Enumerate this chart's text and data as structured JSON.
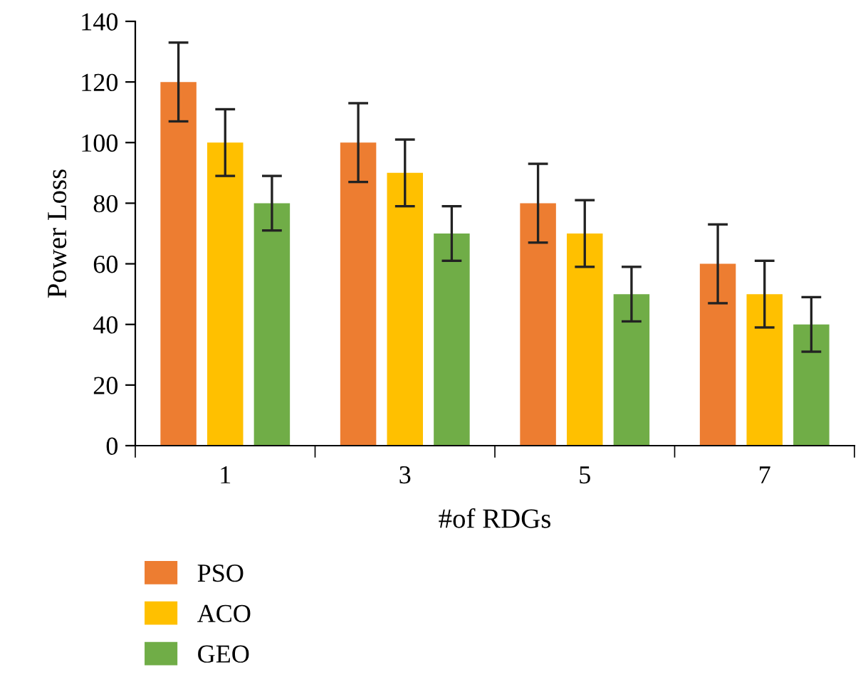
{
  "chart_data": {
    "type": "bar",
    "xlabel": "#of RDGs",
    "ylabel": "Power Loss",
    "categories": [
      "1",
      "3",
      "5",
      "7"
    ],
    "series": [
      {
        "name": "PSO",
        "color": "#ed7d31",
        "values": [
          120,
          100,
          80,
          60
        ],
        "errors": [
          13,
          13,
          13,
          13
        ]
      },
      {
        "name": "ACO",
        "color": "#ffc000",
        "values": [
          100,
          90,
          70,
          50
        ],
        "errors": [
          11,
          11,
          11,
          11
        ]
      },
      {
        "name": "GEO",
        "color": "#70ad47",
        "values": [
          80,
          70,
          50,
          40
        ],
        "errors": [
          9,
          9,
          9,
          9
        ]
      }
    ],
    "ylim": [
      0,
      140
    ],
    "yticks": [
      0,
      20,
      40,
      60,
      80,
      100,
      120,
      140
    ],
    "legend": "bottom",
    "grid": false
  }
}
